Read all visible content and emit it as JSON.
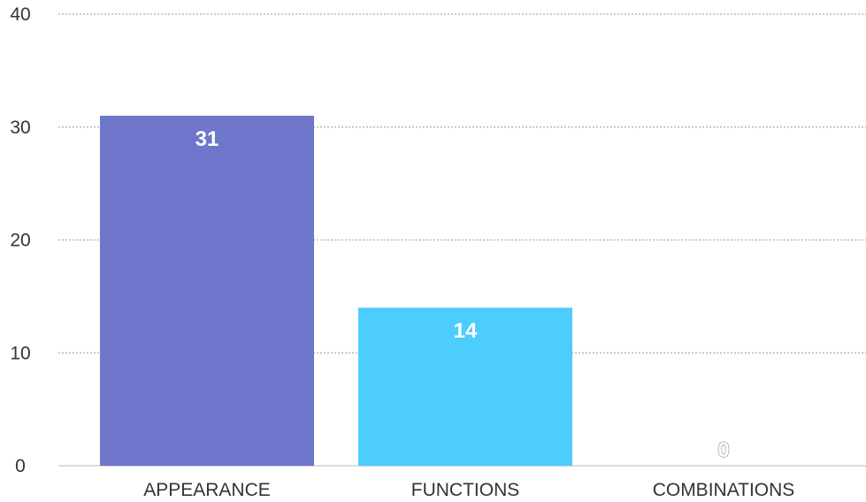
{
  "chart_data": {
    "type": "bar",
    "categories": [
      "APPEARANCE",
      "FUNCTIONS",
      "COMBINATIONS"
    ],
    "values": [
      31,
      14,
      0
    ],
    "bar_colors": [
      "#6e76cc",
      "#4dcdfc",
      "#4dcdfc"
    ],
    "data_labels": [
      "31",
      "14",
      "0"
    ],
    "yticks": [
      "0",
      "10",
      "20",
      "30",
      "40"
    ],
    "ylim": [
      0,
      40
    ],
    "title": "",
    "xlabel": "",
    "ylabel": "",
    "grid": true,
    "grid_color": "#b8b8b8",
    "text_color": "#333333"
  }
}
